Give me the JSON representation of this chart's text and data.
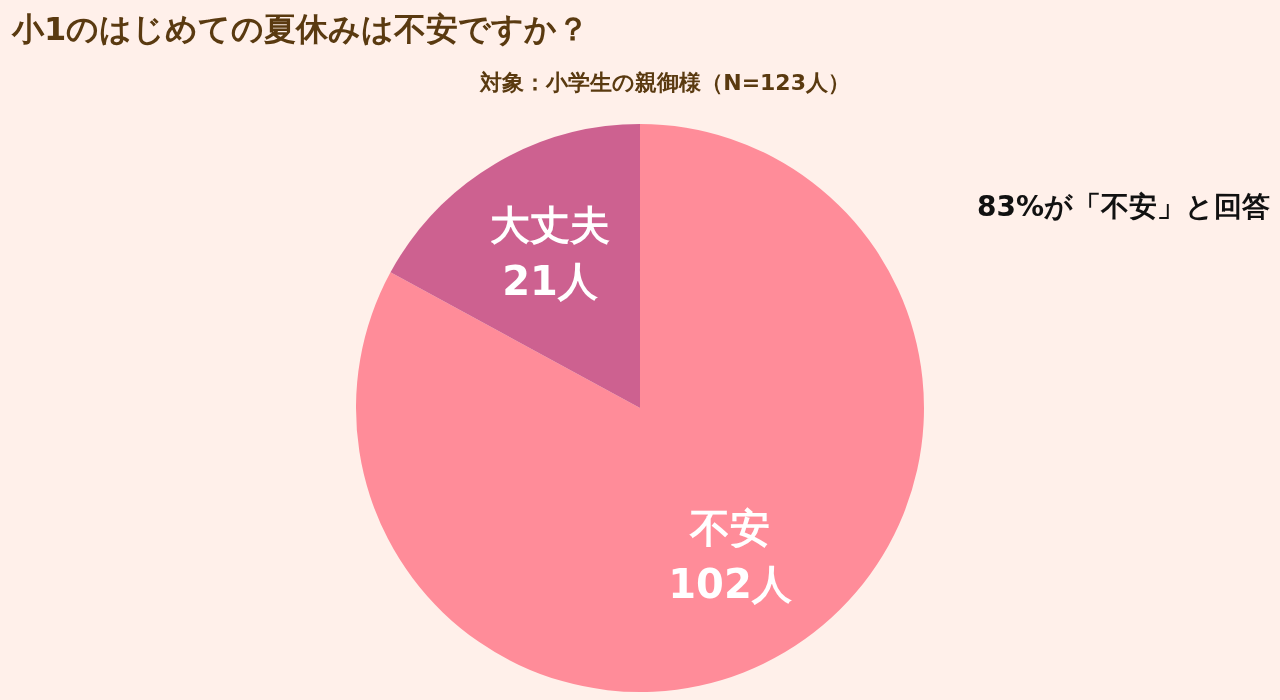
{
  "chart_data": {
    "type": "pie",
    "title": "小1のはじめての夏休みは不安ですか？",
    "subtitle": "対象：小学生の親御様（N=123人）",
    "categories": [
      "不安",
      "大丈夫"
    ],
    "values": [
      102,
      21
    ],
    "colors": [
      "#ff8c99",
      "#cd6190"
    ],
    "value_labels": [
      "102人",
      "21人"
    ],
    "annotations": [
      "83%が「不安」と回答"
    ],
    "legend": false
  }
}
